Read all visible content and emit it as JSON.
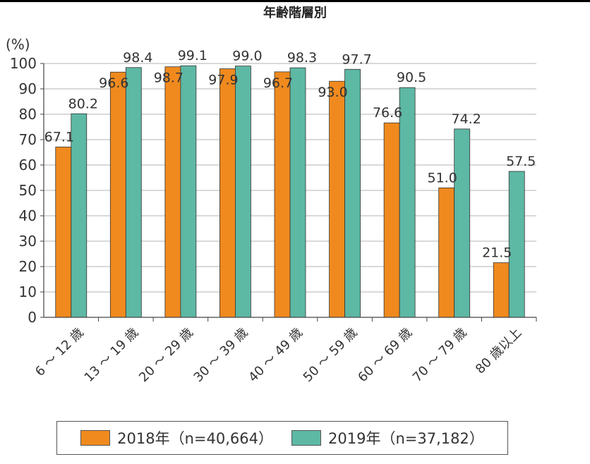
{
  "chart_data": {
    "type": "bar",
    "title": "年齢階層別",
    "ylabel": "(%)",
    "ylim": [
      0,
      100
    ],
    "yticks": [
      0,
      10,
      20,
      30,
      40,
      50,
      60,
      70,
      80,
      90,
      100
    ],
    "categories": [
      "6 〜 12 歳",
      "13 〜 19 歳",
      "20 〜 29 歳",
      "30 〜 39 歳",
      "40 〜 49 歳",
      "50 〜 59 歳",
      "60 〜 69 歳",
      "70 〜 79 歳",
      "80 歳以上"
    ],
    "series": [
      {
        "name": "2018年（n=40,664）",
        "color": "#f08a1e",
        "values": [
          67.1,
          96.6,
          98.7,
          97.9,
          96.7,
          93.0,
          76.6,
          51.0,
          21.5
        ]
      },
      {
        "name": "2019年（n=37,182）",
        "color": "#5db8a4",
        "values": [
          80.2,
          98.4,
          99.1,
          99.0,
          98.3,
          97.7,
          90.5,
          74.2,
          57.5
        ]
      }
    ],
    "grid": true,
    "legend_position": "bottom"
  }
}
